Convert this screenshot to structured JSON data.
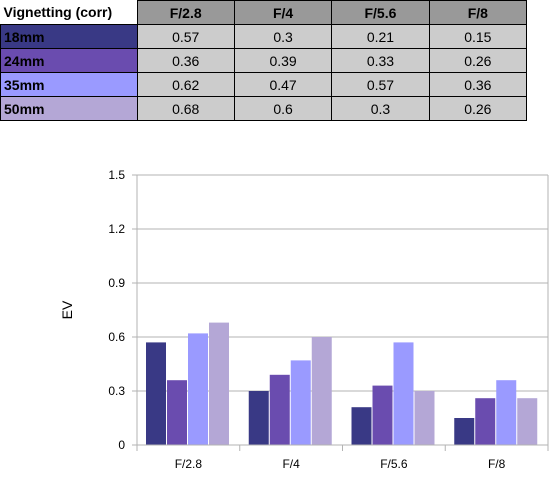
{
  "table": {
    "header": "Vignetting (corr)",
    "columns": [
      "F/2.8",
      "F/4",
      "F/5.6",
      "F/8"
    ],
    "rows": [
      {
        "label": "18mm",
        "color": "#393985",
        "values": [
          "0.57",
          "0.3",
          "0.21",
          "0.15"
        ]
      },
      {
        "label": "24mm",
        "color": "#6a4caf",
        "values": [
          "0.36",
          "0.39",
          "0.33",
          "0.26"
        ]
      },
      {
        "label": "35mm",
        "color": "#9a9aff",
        "values": [
          "0.62",
          "0.47",
          "0.57",
          "0.36"
        ]
      },
      {
        "label": "50mm",
        "color": "#b4a7d6",
        "values": [
          "0.68",
          "0.6",
          "0.3",
          "0.26"
        ]
      }
    ]
  },
  "chart_data": {
    "type": "bar",
    "categories": [
      "F/2.8",
      "F/4",
      "F/5.6",
      "F/8"
    ],
    "series": [
      {
        "color": "#393985",
        "values": [
          0.57,
          0.3,
          0.21,
          0.15
        ]
      },
      {
        "color": "#6a4caf",
        "values": [
          0.36,
          0.39,
          0.33,
          0.26
        ]
      },
      {
        "color": "#9a9aff",
        "values": [
          0.62,
          0.47,
          0.57,
          0.36
        ]
      },
      {
        "color": "#b4a7d6",
        "values": [
          0.68,
          0.6,
          0.3,
          0.26
        ]
      }
    ],
    "ylabel": "EV",
    "ylim": [
      0,
      1.5
    ],
    "yticks": [
      "0",
      "0.3",
      "0.6",
      "0.9",
      "1.2",
      "1.5"
    ],
    "grid": true,
    "legend": "none"
  }
}
